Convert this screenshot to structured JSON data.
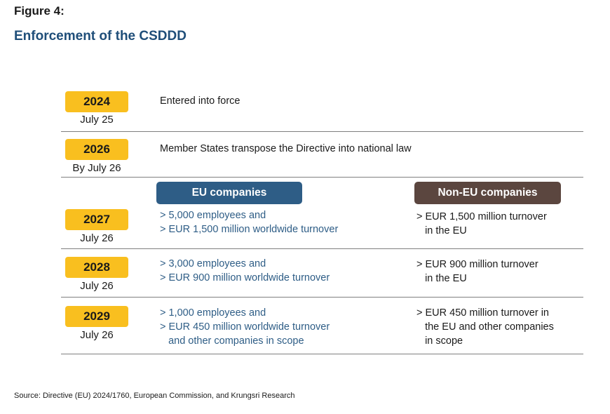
{
  "figure_label": "Figure 4:",
  "title": "Enforcement of the CSDDD",
  "headers": {
    "eu": "EU companies",
    "non_eu": "Non-EU companies"
  },
  "milestones": [
    {
      "year": "2024",
      "date": "July 25",
      "event": "Entered into force"
    },
    {
      "year": "2026",
      "date": "By July 26",
      "event": "Member States transpose the Directive into national law"
    }
  ],
  "phases": [
    {
      "year": "2027",
      "date": "July 26",
      "eu": "> 5,000 employees and\n> EUR 1,500 million worldwide turnover",
      "non_eu": "> EUR 1,500 million turnover\n   in the EU"
    },
    {
      "year": "2028",
      "date": "July 26",
      "eu": "> 3,000 employees and\n> EUR 900 million worldwide turnover",
      "non_eu": "> EUR 900 million turnover\n   in the EU"
    },
    {
      "year": "2029",
      "date": "July 26",
      "eu": "> 1,000 employees and\n> EUR 450 million worldwide turnover\n   and other companies in scope",
      "non_eu": "> EUR 450 million turnover in\n   the EU and other companies\n   in scope"
    }
  ],
  "source": "Source: Directive (EU) 2024/1760, European Commission, and Krungsri Research",
  "colors": {
    "badge": "#f9bf1f",
    "title": "#1f4e79",
    "eu_header": "#2e5d86",
    "non_eu_header": "#5b463f",
    "eu_text": "#2e5d86"
  }
}
